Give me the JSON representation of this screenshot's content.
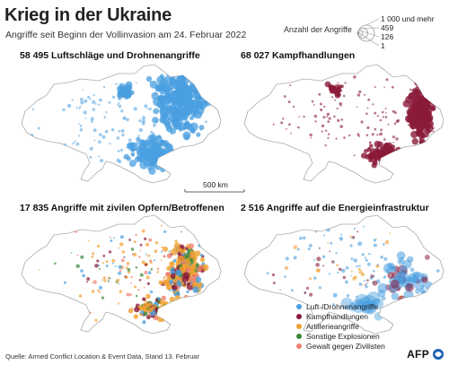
{
  "title": "Krieg in der Ukraine",
  "subtitle": "Angriffe seit Beginn der Vollinvasion am 24. Februar 2022",
  "size_legend": {
    "title": "Anzahl der Angriffe",
    "levels": [
      "1 000 und mehr",
      "459",
      "126",
      "1"
    ]
  },
  "scale_bar": "500 km",
  "panels": [
    {
      "title": "58 495 Luftschläge und Drohnenangriffe",
      "count": "58 495",
      "color": "#4a9fe0"
    },
    {
      "title": "68 027 Kampfhandlungen",
      "count": "68 027",
      "color": "#8b1a3a"
    },
    {
      "title": "17 835 Angriffe mit zivilen Opfern/Betroffenen",
      "count": "17 835"
    },
    {
      "title": "2 516 Angriffe auf die Energieinfrastruktur",
      "count": "2 516"
    }
  ],
  "category_legend": [
    {
      "label": "Luft-/Drohnenangriffe",
      "color": "#4a9fe0"
    },
    {
      "label": "Kampfhandlungen",
      "color": "#8b1a3a"
    },
    {
      "label": "Artillerieangriffe",
      "color": "#f0a030"
    },
    {
      "label": "Sonstige Explosionen",
      "color": "#3a8a3a"
    },
    {
      "label": "Gewalt gegen Zivilisten",
      "color": "#f08070"
    }
  ],
  "source": "Quelle: Armed Conflict Location & Event Data, Stand 13. Februar",
  "logo": "AFP"
}
